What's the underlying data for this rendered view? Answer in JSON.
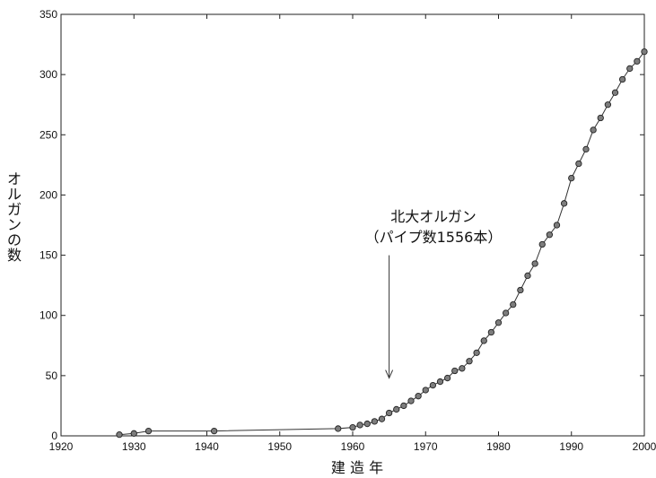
{
  "chart_data": {
    "type": "line",
    "xlabel": "建 造 年",
    "ylabel": "オルガンの数",
    "xlim": [
      1920,
      2000
    ],
    "ylim": [
      0,
      350
    ],
    "xticks": [
      1920,
      1930,
      1940,
      1950,
      1960,
      1970,
      1980,
      1990,
      2000
    ],
    "yticks": [
      0,
      50,
      100,
      150,
      200,
      250,
      300,
      350
    ],
    "grid": false,
    "annotation": {
      "line1": "北大オルガン",
      "line2": "（パイプ数1556本）",
      "arrow_x": 1965,
      "arrow_y_from": 150,
      "arrow_y_to": 48
    },
    "series": [
      {
        "marker": "circle",
        "x": [
          1928,
          1930,
          1932,
          1941,
          1958,
          1960,
          1961,
          1962,
          1963,
          1964,
          1965,
          1966,
          1967,
          1968,
          1969,
          1970,
          1971,
          1972,
          1973,
          1974,
          1975,
          1976,
          1977,
          1978,
          1979,
          1980,
          1981,
          1982,
          1983,
          1984,
          1985,
          1986,
          1987,
          1988,
          1989,
          1990,
          1991,
          1992,
          1993,
          1994,
          1995,
          1996,
          1997,
          1998,
          1999,
          2000
        ],
        "y": [
          1,
          2,
          4,
          4,
          6,
          7,
          9,
          10,
          12,
          14,
          19,
          22,
          25,
          29,
          33,
          38,
          42,
          45,
          48,
          54,
          56,
          62,
          69,
          79,
          86,
          94,
          102,
          109,
          121,
          133,
          143,
          159,
          167,
          175,
          193,
          214,
          226,
          238,
          254,
          264,
          275,
          285,
          296,
          305,
          311,
          319
        ]
      }
    ]
  }
}
